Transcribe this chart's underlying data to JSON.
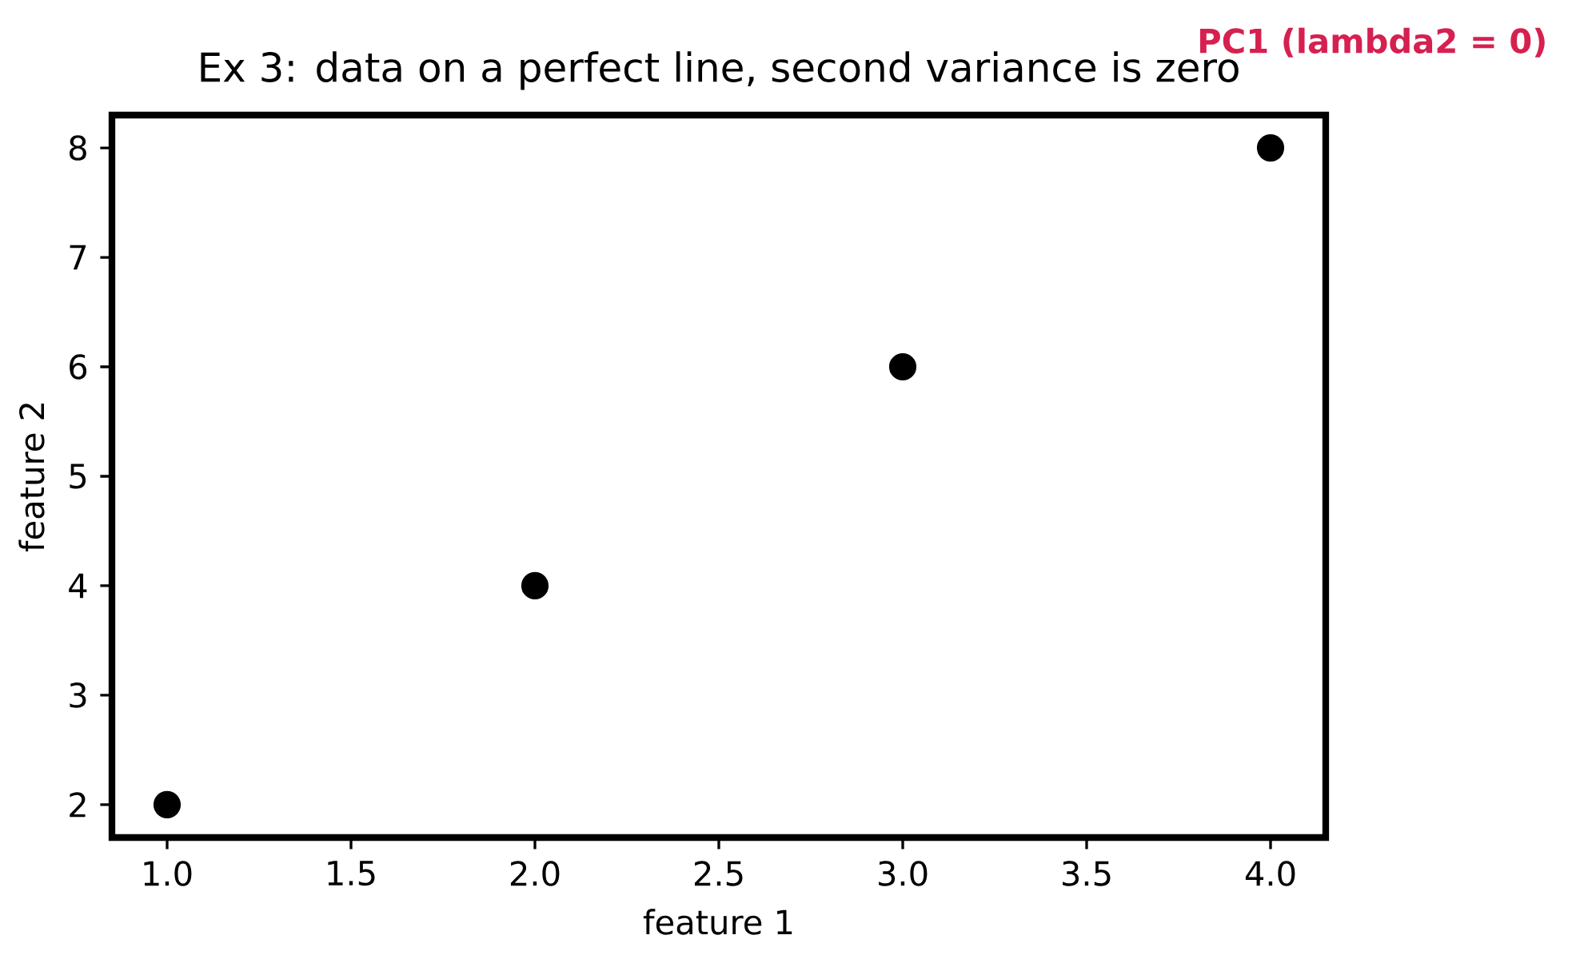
{
  "chart_data": {
    "type": "scatter",
    "title": "Ex 3: data on a perfect line, second variance is zero",
    "xlabel": "feature 1",
    "ylabel": "feature 2",
    "x": [
      1,
      2,
      3,
      4
    ],
    "values": [
      2,
      4,
      6,
      8
    ],
    "color": "#000000",
    "marker": "circle",
    "xlim": [
      0.85,
      4.15
    ],
    "ylim": [
      1.7,
      8.3
    ],
    "xticks": [
      {
        "value": 1,
        "label": "1.0"
      },
      {
        "value": 1.5,
        "label": "1.5"
      },
      {
        "value": 2,
        "label": "2.0"
      },
      {
        "value": 2.5,
        "label": "2.5"
      },
      {
        "value": 3,
        "label": "3.0"
      },
      {
        "value": 3.5,
        "label": "3.5"
      },
      {
        "value": 4,
        "label": "4.0"
      }
    ],
    "yticks": [
      2,
      3,
      4,
      5,
      6,
      7,
      8
    ],
    "annotations": [
      "PC1 (lambda2 = 0)"
    ]
  }
}
